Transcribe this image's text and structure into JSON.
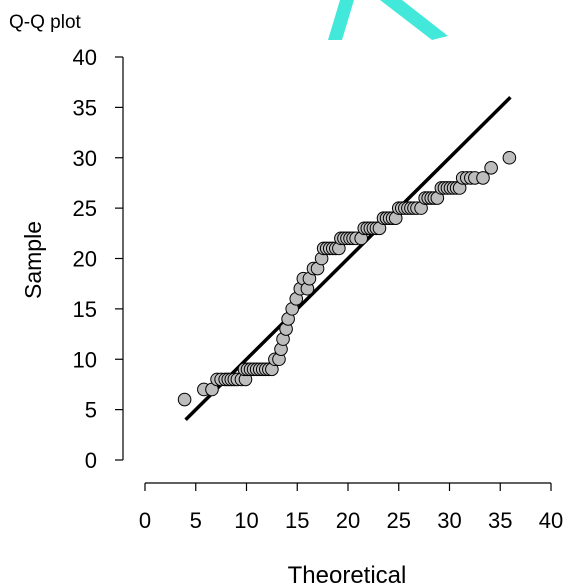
{
  "window": {
    "title": "Q-Q plot"
  },
  "colors": {
    "points_fill": "#bdbdbd",
    "points_stroke": "#000000",
    "line": "#000000",
    "watermark": "#2ee6d6"
  },
  "chart_data": {
    "type": "scatter",
    "title": "",
    "xlabel": "Theoretical",
    "ylabel": "Sample",
    "xlim": [
      0,
      40
    ],
    "ylim": [
      0,
      40
    ],
    "xticks": [
      0,
      5,
      10,
      15,
      20,
      25,
      30,
      35,
      40
    ],
    "yticks": [
      0,
      5,
      10,
      15,
      20,
      25,
      30,
      35,
      40
    ],
    "grid": false,
    "reference_line": {
      "x": [
        4,
        36
      ],
      "y": [
        4,
        36
      ]
    },
    "points": [
      [
        3.9,
        6
      ],
      [
        5.8,
        7
      ],
      [
        6.6,
        7
      ],
      [
        7.1,
        8
      ],
      [
        7.5,
        8
      ],
      [
        7.9,
        8
      ],
      [
        8.2,
        8
      ],
      [
        8.5,
        8
      ],
      [
        8.8,
        8
      ],
      [
        9.1,
        8
      ],
      [
        9.5,
        8
      ],
      [
        9.9,
        8
      ],
      [
        9.8,
        9
      ],
      [
        10.1,
        9
      ],
      [
        10.4,
        9
      ],
      [
        10.7,
        9
      ],
      [
        11.0,
        9
      ],
      [
        11.3,
        9
      ],
      [
        11.6,
        9
      ],
      [
        11.9,
        9
      ],
      [
        12.2,
        9
      ],
      [
        12.5,
        9
      ],
      [
        12.8,
        10
      ],
      [
        13.2,
        10
      ],
      [
        13.4,
        11
      ],
      [
        13.6,
        12
      ],
      [
        13.9,
        13
      ],
      [
        14.1,
        14
      ],
      [
        14.5,
        15
      ],
      [
        14.9,
        16
      ],
      [
        15.3,
        17
      ],
      [
        15.6,
        18
      ],
      [
        16.0,
        17
      ],
      [
        16.2,
        18
      ],
      [
        16.6,
        19
      ],
      [
        17.0,
        19
      ],
      [
        17.4,
        20
      ],
      [
        17.6,
        21
      ],
      [
        17.9,
        21
      ],
      [
        18.2,
        21
      ],
      [
        18.5,
        21
      ],
      [
        18.8,
        21
      ],
      [
        19.1,
        21
      ],
      [
        19.3,
        22
      ],
      [
        19.6,
        22
      ],
      [
        19.9,
        22
      ],
      [
        20.2,
        22
      ],
      [
        20.5,
        22
      ],
      [
        20.8,
        22
      ],
      [
        21.3,
        22
      ],
      [
        21.6,
        23
      ],
      [
        21.9,
        23
      ],
      [
        22.2,
        23
      ],
      [
        22.5,
        23
      ],
      [
        22.8,
        23
      ],
      [
        23.1,
        23
      ],
      [
        23.5,
        24
      ],
      [
        23.8,
        24
      ],
      [
        24.1,
        24
      ],
      [
        24.4,
        24
      ],
      [
        24.7,
        24
      ],
      [
        25.0,
        25
      ],
      [
        25.3,
        25
      ],
      [
        25.6,
        25
      ],
      [
        25.9,
        25
      ],
      [
        26.2,
        25
      ],
      [
        26.5,
        25
      ],
      [
        26.8,
        25
      ],
      [
        27.2,
        25
      ],
      [
        27.6,
        26
      ],
      [
        27.9,
        26
      ],
      [
        28.2,
        26
      ],
      [
        28.5,
        26
      ],
      [
        28.8,
        26
      ],
      [
        29.2,
        27
      ],
      [
        29.5,
        27
      ],
      [
        29.8,
        27
      ],
      [
        30.1,
        27
      ],
      [
        30.4,
        27
      ],
      [
        30.7,
        27
      ],
      [
        31.0,
        27
      ],
      [
        31.3,
        28
      ],
      [
        31.7,
        28
      ],
      [
        32.1,
        28
      ],
      [
        32.5,
        28
      ],
      [
        33.3,
        28
      ],
      [
        34.1,
        29
      ],
      [
        35.9,
        30
      ]
    ]
  }
}
